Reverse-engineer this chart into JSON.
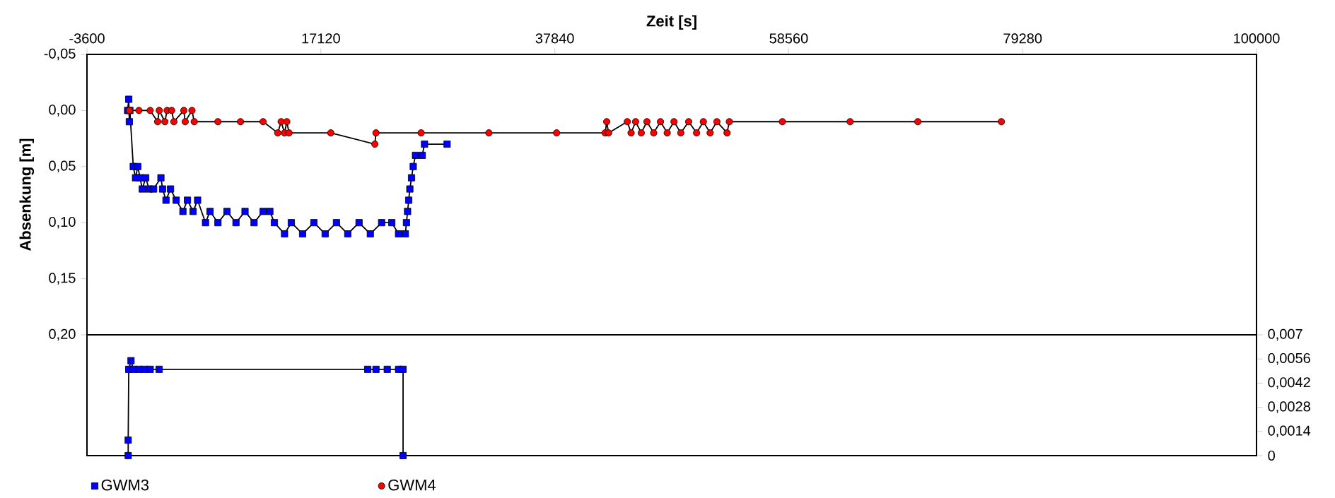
{
  "chart_data": [
    {
      "type": "line",
      "xlabel": "Zeit [s]",
      "ylabel": "Absenkung [m]",
      "xlim": [
        -3600,
        100000
      ],
      "xticks": [
        -3600,
        17120,
        37840,
        58560,
        79280,
        100000
      ],
      "ylim": [
        0.2,
        -0.05
      ],
      "yticks": [
        {
          "value": -0.05,
          "label": "-0,05"
        },
        {
          "value": 0,
          "label": "0,00"
        },
        {
          "value": 0.05,
          "label": "0,05"
        },
        {
          "value": 0.1,
          "label": "0,10"
        },
        {
          "value": 0.15,
          "label": "0,15"
        },
        {
          "value": 0.2,
          "label": "0,20"
        }
      ],
      "legend": "bottom",
      "line_style": "solid",
      "series": [
        {
          "name": "GWM3",
          "color": "#0000ff",
          "marker": "square",
          "x": [
            0,
            100,
            150,
            200,
            500,
            700,
            900,
            1100,
            1300,
            1600,
            1900,
            2300,
            2950,
            3100,
            3400,
            3800,
            4300,
            4900,
            5300,
            5800,
            6200,
            6900,
            7300,
            8000,
            8800,
            9600,
            10400,
            11200,
            12000,
            12600,
            13000,
            13900,
            14500,
            15500,
            16500,
            17500,
            18500,
            19500,
            20500,
            21500,
            22500,
            23400,
            24000,
            24600,
            24700,
            24800,
            24900,
            25000,
            25150,
            25300,
            25500,
            26100,
            26300,
            28300
          ],
          "values": [
            0,
            -0.01,
            0.01,
            0,
            0.05,
            0.06,
            0.05,
            0.06,
            0.07,
            0.06,
            0.07,
            0.07,
            0.06,
            0.07,
            0.08,
            0.07,
            0.08,
            0.09,
            0.08,
            0.09,
            0.08,
            0.1,
            0.09,
            0.1,
            0.09,
            0.1,
            0.09,
            0.1,
            0.09,
            0.09,
            0.1,
            0.11,
            0.1,
            0.11,
            0.1,
            0.11,
            0.1,
            0.11,
            0.1,
            0.11,
            0.1,
            0.1,
            0.11,
            0.11,
            0.1,
            0.09,
            0.08,
            0.07,
            0.06,
            0.05,
            0.04,
            0.04,
            0.03,
            0.03
          ]
        },
        {
          "name": "GWM4",
          "color": "#ff0000",
          "marker": "circle",
          "x": [
            150,
            1000,
            2000,
            2660,
            2800,
            3300,
            3500,
            3900,
            4100,
            4980,
            5100,
            5700,
            5900,
            8000,
            10000,
            12000,
            13300,
            13600,
            13900,
            14100,
            14300,
            18000,
            21900,
            22000,
            26000,
            32000,
            38000,
            42300,
            42440,
            42600,
            44260,
            44600,
            45000,
            45500,
            46000,
            46600,
            47200,
            47800,
            48400,
            49000,
            49700,
            50400,
            51000,
            51600,
            52200,
            53100,
            53300,
            58000,
            64000,
            70000,
            77400
          ],
          "values": [
            0,
            0,
            0,
            0.01,
            0,
            0.01,
            0,
            0,
            0.01,
            0,
            0.01,
            0,
            0.01,
            0.01,
            0.01,
            0.01,
            0.02,
            0.01,
            0.02,
            0.01,
            0.02,
            0.02,
            0.03,
            0.02,
            0.02,
            0.02,
            0.02,
            0.02,
            0.01,
            0.02,
            0.01,
            0.02,
            0.01,
            0.02,
            0.01,
            0.02,
            0.01,
            0.02,
            0.01,
            0.02,
            0.01,
            0.02,
            0.01,
            0.02,
            0.01,
            0.02,
            0.01,
            0.01,
            0.01,
            0.01,
            0.01
          ]
        }
      ]
    },
    {
      "type": "line",
      "xlim": [
        -3600,
        100000
      ],
      "ylim": [
        0,
        0.007
      ],
      "yticks": [
        0,
        {
          "value": 0.0014,
          "label": "0,0014"
        },
        {
          "value": 0.0028,
          "label": "0,0028"
        },
        {
          "value": 0.0042,
          "label": "0,0042"
        },
        {
          "value": 0.0056,
          "label": "0,0056"
        },
        {
          "value": 0.007,
          "label": "0,007"
        }
      ],
      "tick_labels": "y",
      "line_style": "solid",
      "series": [
        {
          "color": "#0000ff",
          "marker": "square",
          "x": [
            50,
            50,
            100,
            300,
            500,
            1000,
            1500,
            2000,
            2790,
            21270,
            22000,
            23000,
            24000,
            24400,
            24400
          ],
          "values": [
            0,
            0.0009,
            0.005,
            0.0055,
            0.005,
            0.005,
            0.005,
            0.005,
            0.005,
            0.005,
            0.005,
            0.005,
            0.005,
            0.005,
            0
          ]
        }
      ]
    }
  ]
}
